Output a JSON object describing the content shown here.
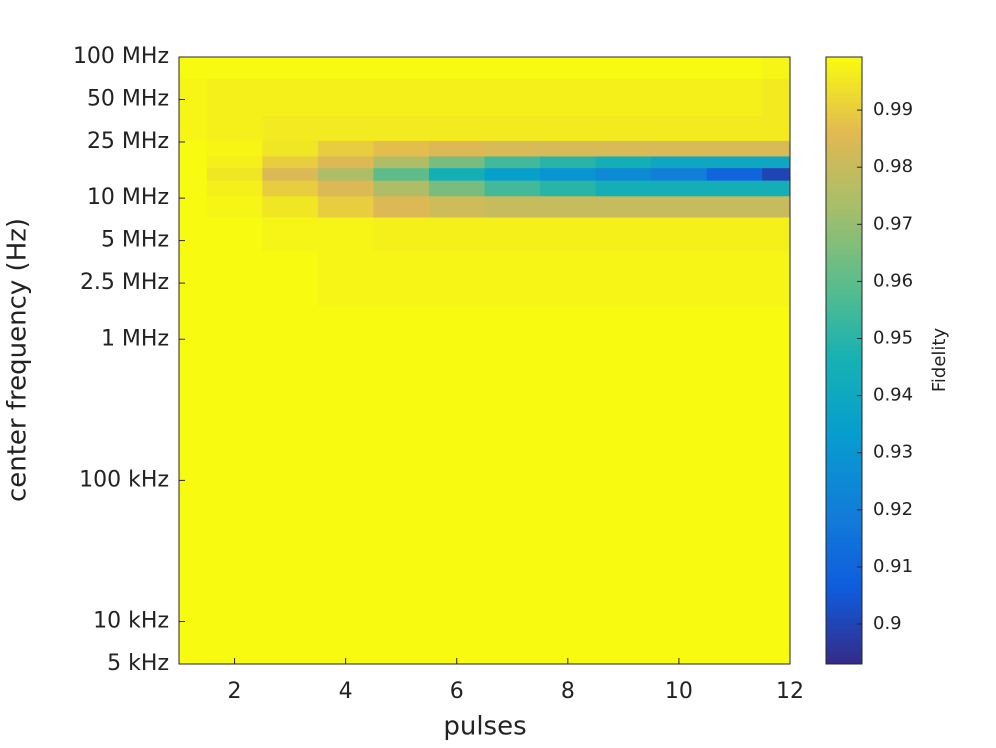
{
  "chart_data": {
    "type": "heatmap",
    "x_label": "pulses",
    "y_label": "center frequency (Hz)",
    "colorbar_label": "Fidelity",
    "colormap": "parula",
    "log_y": true,
    "x": [
      1,
      2,
      3,
      4,
      5,
      6,
      7,
      8,
      9,
      10,
      11,
      12
    ],
    "y": [
      5000,
      10000,
      100000,
      1000000,
      3000000,
      6000000,
      9000000,
      12000000,
      15000000,
      18000000,
      22000000,
      30000000,
      50000000,
      100000000
    ],
    "z": [
      [
        0.999,
        0.999,
        0.999,
        0.999,
        0.999,
        0.999,
        0.999,
        0.999,
        0.999,
        0.999,
        0.999,
        0.999
      ],
      [
        0.999,
        0.999,
        0.999,
        0.999,
        0.999,
        0.999,
        0.999,
        0.999,
        0.999,
        0.999,
        0.999,
        0.999
      ],
      [
        0.999,
        0.999,
        0.999,
        0.999,
        0.999,
        0.999,
        0.999,
        0.999,
        0.999,
        0.999,
        0.999,
        0.999
      ],
      [
        0.999,
        0.999,
        0.999,
        0.999,
        0.999,
        0.999,
        0.999,
        0.999,
        0.999,
        0.999,
        0.999,
        0.999
      ],
      [
        0.999,
        0.999,
        0.999,
        0.998,
        0.998,
        0.998,
        0.998,
        0.998,
        0.998,
        0.998,
        0.998,
        0.998
      ],
      [
        0.999,
        0.999,
        0.998,
        0.998,
        0.997,
        0.997,
        0.997,
        0.997,
        0.997,
        0.997,
        0.997,
        0.997
      ],
      [
        0.999,
        0.998,
        0.995,
        0.99,
        0.985,
        0.982,
        0.98,
        0.98,
        0.98,
        0.98,
        0.98,
        0.98
      ],
      [
        0.999,
        0.997,
        0.99,
        0.985,
        0.975,
        0.965,
        0.955,
        0.95,
        0.945,
        0.945,
        0.945,
        0.945
      ],
      [
        0.999,
        0.995,
        0.985,
        0.975,
        0.96,
        0.945,
        0.935,
        0.93,
        0.925,
        0.92,
        0.91,
        0.9
      ],
      [
        0.999,
        0.997,
        0.99,
        0.985,
        0.975,
        0.965,
        0.955,
        0.95,
        0.945,
        0.94,
        0.94,
        0.94
      ],
      [
        0.999,
        0.998,
        0.995,
        0.99,
        0.987,
        0.985,
        0.984,
        0.984,
        0.984,
        0.984,
        0.984,
        0.984
      ],
      [
        0.998,
        0.997,
        0.996,
        0.996,
        0.996,
        0.996,
        0.996,
        0.996,
        0.996,
        0.996,
        0.996,
        0.996
      ],
      [
        0.998,
        0.997,
        0.997,
        0.997,
        0.997,
        0.997,
        0.997,
        0.997,
        0.997,
        0.997,
        0.997,
        0.996
      ],
      [
        0.999,
        0.999,
        0.999,
        0.999,
        0.999,
        0.999,
        0.999,
        0.999,
        0.999,
        0.999,
        0.999,
        0.998
      ]
    ],
    "xlim": [
      1,
      12
    ],
    "xticks": [
      2,
      4,
      6,
      8,
      10,
      12
    ],
    "ylim": [
      5000,
      100000000
    ],
    "yticks": [
      {
        "value": 5000,
        "label": "5 kHz"
      },
      {
        "value": 10000,
        "label": "10 kHz"
      },
      {
        "value": 100000,
        "label": "100 kHz"
      },
      {
        "value": 1000000,
        "label": "1 MHz"
      },
      {
        "value": 2500000,
        "label": "2.5 MHz"
      },
      {
        "value": 5000000,
        "label": "5 MHz"
      },
      {
        "value": 10000000,
        "label": "10 MHz"
      },
      {
        "value": 25000000,
        "label": "25 MHz"
      },
      {
        "value": 50000000,
        "label": "50 MHz"
      },
      {
        "value": 100000000,
        "label": "100 MHz"
      }
    ],
    "clim": [
      0.893,
      0.9993
    ],
    "cticks": [
      0.9,
      0.91,
      0.92,
      0.93,
      0.94,
      0.95,
      0.96,
      0.97,
      0.98,
      0.99
    ]
  }
}
